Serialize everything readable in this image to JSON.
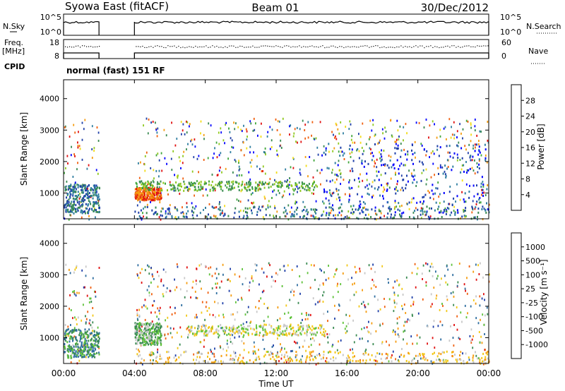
{
  "header": {
    "station": "Syowa East (fitACF)",
    "beam": "Beam 01",
    "date": "30/Dec/2012"
  },
  "top_panel": {
    "left_label": "N.Sky",
    "left_ticks": [
      "10^5",
      "10^0"
    ],
    "right_ticks": [
      "10^5",
      "10^0"
    ],
    "right_label": "N.Search",
    "sky_segments_hours": [
      [
        0.0,
        2.0
      ],
      [
        4.0,
        24.0
      ]
    ]
  },
  "freq_panel": {
    "left_label_1": "Freq.",
    "left_label_2": "[MHz]",
    "left_ticks": [
      "18",
      "8"
    ],
    "right_ticks": [
      "60",
      "0"
    ],
    "right_label": "Nave"
  },
  "cpid": {
    "label": "CPID",
    "text": "normal (fast) 151 RF"
  },
  "chart_data": [
    {
      "type": "heatmap",
      "name": "power",
      "ylabel": "Slant Range [km]",
      "y_ticks": [
        1000,
        2000,
        3000,
        4000
      ],
      "ylim": [
        180,
        4600
      ],
      "colorbar": {
        "label": "Power [dB]",
        "ticks": [
          "4",
          "8",
          "12",
          "16",
          "20",
          "24",
          "28"
        ],
        "colors": [
          "#0000ff",
          "#1f3fa8",
          "#2f7ea0",
          "#3a8a52",
          "#3fa63a",
          "#8fc820",
          "#f2dc18",
          "#f59c10",
          "#f06010",
          "#e01010"
        ]
      },
      "bands": [
        {
          "t": [
            0.0,
            2.0
          ],
          "r": [
            380,
            1300
          ],
          "c": 2
        },
        {
          "t": [
            4.0,
            5.5
          ],
          "r": [
            800,
            1200
          ],
          "c": 8
        },
        {
          "t": [
            4.0,
            14.5
          ],
          "r": [
            1100,
            1400
          ],
          "c": 4
        },
        {
          "t": [
            14.5,
            24.0
          ],
          "r": [
            400,
            2600
          ],
          "c": 1
        },
        {
          "t": [
            4.0,
            24.0
          ],
          "r": [
            200,
            600
          ],
          "c": 2
        }
      ]
    },
    {
      "type": "heatmap",
      "name": "velocity",
      "ylabel": "Slant Range [km]",
      "y_ticks": [
        1000,
        2000,
        3000,
        4000
      ],
      "ylim": [
        180,
        4600
      ],
      "colorbar": {
        "label": "Velocity [m s⁻¹]",
        "ticks": [
          "1000",
          "500",
          "100",
          "25",
          "-25",
          "-100",
          "-500",
          "-1000"
        ],
        "colors": [
          "#1f3fa8",
          "#2f6ea0",
          "#3a8a52",
          "#5fc23a",
          "#c8c8c8",
          "#f2c818",
          "#f59c10",
          "#f06010",
          "#e01010"
        ]
      },
      "bands": [
        {
          "t": [
            0.0,
            2.0
          ],
          "r": [
            380,
            1300
          ],
          "c": 2
        },
        {
          "t": [
            4.0,
            5.5
          ],
          "r": [
            800,
            1500
          ],
          "c": 3
        },
        {
          "t": [
            7.0,
            15.0
          ],
          "r": [
            1100,
            1450
          ],
          "c": 4
        },
        {
          "t": [
            4.0,
            24.0
          ],
          "r": [
            200,
            600
          ],
          "c": 5
        }
      ]
    }
  ],
  "x_axis": {
    "ticks": [
      "00:00",
      "04:00",
      "08:00",
      "12:00",
      "16:00",
      "20:00",
      "00:00"
    ],
    "label": "Time UT",
    "range_hours": [
      0,
      24
    ]
  }
}
